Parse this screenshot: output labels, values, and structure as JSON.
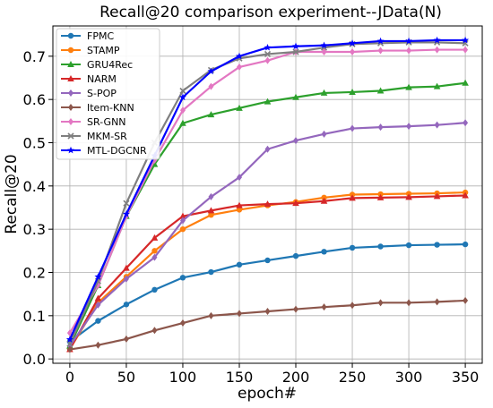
{
  "chart_data": {
    "type": "line",
    "title": "Recall@20 comparison experiment--JData(N)",
    "xlabel": "epoch#",
    "ylabel": "Recall@20",
    "x": [
      0,
      25,
      50,
      75,
      100,
      125,
      150,
      175,
      200,
      225,
      250,
      275,
      300,
      325,
      350
    ],
    "xlim": [
      -15,
      365
    ],
    "ylim": [
      -0.01,
      0.77
    ],
    "xticks": [
      0,
      50,
      100,
      150,
      200,
      250,
      300,
      350
    ],
    "yticks": [
      0.0,
      0.1,
      0.2,
      0.3,
      0.4,
      0.5,
      0.6,
      0.7
    ],
    "grid": true,
    "legend_position": "upper-left",
    "series": [
      {
        "name": "FPMC",
        "color": "#1f77b4",
        "marker": "circle",
        "values": [
          0.04,
          0.088,
          0.126,
          0.16,
          0.188,
          0.201,
          0.218,
          0.228,
          0.238,
          0.248,
          0.257,
          0.26,
          0.263,
          0.264,
          0.265
        ]
      },
      {
        "name": "STAMP",
        "color": "#ff7f0e",
        "marker": "circle",
        "values": [
          0.023,
          0.13,
          0.19,
          0.25,
          0.3,
          0.333,
          0.345,
          0.355,
          0.363,
          0.373,
          0.38,
          0.381,
          0.382,
          0.383,
          0.385
        ]
      },
      {
        "name": "GRU4Rec",
        "color": "#2ca02c",
        "marker": "triangle",
        "values": [
          0.03,
          0.17,
          0.33,
          0.45,
          0.545,
          0.565,
          0.58,
          0.595,
          0.605,
          0.615,
          0.617,
          0.62,
          0.628,
          0.63,
          0.638
        ]
      },
      {
        "name": "NARM",
        "color": "#d62728",
        "marker": "triangle",
        "values": [
          0.022,
          0.14,
          0.21,
          0.28,
          0.33,
          0.343,
          0.355,
          0.358,
          0.36,
          0.365,
          0.372,
          0.373,
          0.374,
          0.376,
          0.378
        ]
      },
      {
        "name": "S-POP",
        "color": "#9467bd",
        "marker": "diamond",
        "values": [
          0.03,
          0.125,
          0.185,
          0.235,
          0.32,
          0.375,
          0.42,
          0.485,
          0.505,
          0.52,
          0.533,
          0.536,
          0.538,
          0.541,
          0.546
        ]
      },
      {
        "name": "Item-KNN",
        "color": "#8c564b",
        "marker": "diamond",
        "values": [
          0.022,
          0.032,
          0.046,
          0.066,
          0.083,
          0.1,
          0.105,
          0.11,
          0.115,
          0.12,
          0.124,
          0.13,
          0.13,
          0.132,
          0.135
        ]
      },
      {
        "name": "SR-GNN",
        "color": "#e377c2",
        "marker": "diamond",
        "values": [
          0.06,
          0.17,
          0.33,
          0.46,
          0.575,
          0.63,
          0.675,
          0.69,
          0.71,
          0.71,
          0.71,
          0.713,
          0.713,
          0.715,
          0.715
        ]
      },
      {
        "name": "MKM-SR",
        "color": "#7f7f7f",
        "marker": "x",
        "values": [
          0.035,
          0.18,
          0.36,
          0.5,
          0.62,
          0.668,
          0.695,
          0.705,
          0.71,
          0.72,
          0.728,
          0.73,
          0.732,
          0.732,
          0.73
        ]
      },
      {
        "name": "MTL-DGCNR",
        "color": "#0000ff",
        "marker": "star",
        "values": [
          0.045,
          0.19,
          0.335,
          0.47,
          0.605,
          0.665,
          0.7,
          0.72,
          0.723,
          0.725,
          0.73,
          0.735,
          0.735,
          0.737,
          0.737
        ]
      }
    ]
  }
}
